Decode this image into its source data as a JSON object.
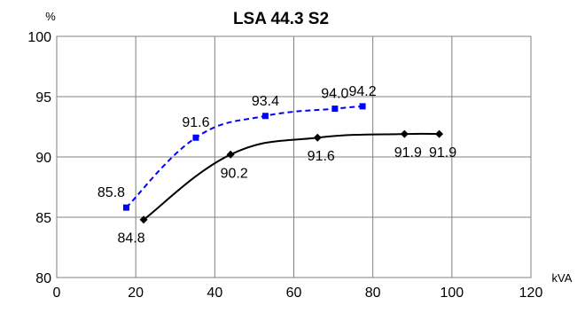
{
  "chart_data": {
    "type": "line",
    "title": "LSA 44.3 S2",
    "xlabel": "kVA",
    "ylabel": "%",
    "xlim": [
      0,
      120
    ],
    "ylim": [
      80,
      100
    ],
    "xticks": [
      0,
      20,
      40,
      60,
      80,
      100,
      120
    ],
    "yticks": [
      80,
      85,
      90,
      95,
      100
    ],
    "grid": true,
    "series": [
      {
        "color": "#0000FF",
        "dash": true,
        "marker": "square",
        "label_position": "above",
        "points": [
          {
            "x": 17.6,
            "y": 85.8,
            "label": "85.8"
          },
          {
            "x": 35.2,
            "y": 91.6,
            "label": "91.6"
          },
          {
            "x": 52.8,
            "y": 93.4,
            "label": "93.4"
          },
          {
            "x": 70.4,
            "y": 94.0,
            "label": "94.0"
          },
          {
            "x": 77.4,
            "y": 94.2,
            "label": "94.2"
          }
        ]
      },
      {
        "color": "#000000",
        "dash": false,
        "marker": "diamond",
        "label_position": "below",
        "points": [
          {
            "x": 22.0,
            "y": 84.8,
            "label": "84.8"
          },
          {
            "x": 44.0,
            "y": 90.2,
            "label": "90.2"
          },
          {
            "x": 66.0,
            "y": 91.6,
            "label": "91.6"
          },
          {
            "x": 88.0,
            "y": 91.9,
            "label": "91.9"
          },
          {
            "x": 96.8,
            "y": 91.9,
            "label": "91.9"
          }
        ]
      }
    ]
  }
}
